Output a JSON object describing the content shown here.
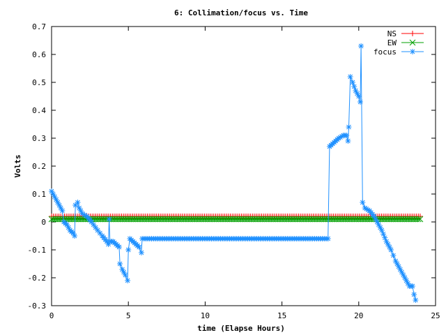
{
  "chart_data": {
    "type": "line",
    "title": "6: Collimation/focus vs. Time",
    "xlabel": "time (Elapse Hours)",
    "ylabel": "Volts",
    "xlim": [
      0,
      25
    ],
    "ylim": [
      -0.3,
      0.7
    ],
    "xticks": [
      "0",
      "5",
      "10",
      "15",
      "20",
      "25"
    ],
    "yticks": [
      "-0.3",
      "-0.2",
      "-0.1",
      "0",
      "0.1",
      "0.2",
      "0.3",
      "0.4",
      "0.5",
      "0.6",
      "0.7"
    ],
    "legend_position": "top-right",
    "series": [
      {
        "name": "NS",
        "color": "#ff0000",
        "marker": "plus",
        "points": [
          [
            0,
            0.02
          ],
          [
            24,
            0.02
          ]
        ]
      },
      {
        "name": "EW",
        "color": "#00a000",
        "marker": "cross",
        "points": [
          [
            0,
            0.01
          ],
          [
            24,
            0.01
          ]
        ]
      },
      {
        "name": "focus",
        "color": "#1e90ff",
        "marker": "star",
        "points": [
          [
            0,
            0.11
          ],
          [
            0.2,
            0.09
          ],
          [
            0.4,
            0.07
          ],
          [
            0.6,
            0.05
          ],
          [
            0.7,
            0.04
          ],
          [
            0.8,
            0.0
          ],
          [
            1.0,
            -0.01
          ],
          [
            1.2,
            -0.03
          ],
          [
            1.4,
            -0.04
          ],
          [
            1.5,
            -0.05
          ],
          [
            1.55,
            0.06
          ],
          [
            1.7,
            0.07
          ],
          [
            1.8,
            0.05
          ],
          [
            2.0,
            0.03
          ],
          [
            2.3,
            0.02
          ],
          [
            2.6,
            0.0
          ],
          [
            3.0,
            -0.03
          ],
          [
            3.3,
            -0.05
          ],
          [
            3.6,
            -0.07
          ],
          [
            3.7,
            -0.08
          ],
          [
            3.75,
            0.01
          ],
          [
            3.8,
            -0.07
          ],
          [
            4.0,
            -0.07
          ],
          [
            4.2,
            -0.08
          ],
          [
            4.4,
            -0.09
          ],
          [
            4.45,
            -0.15
          ],
          [
            4.6,
            -0.17
          ],
          [
            4.8,
            -0.19
          ],
          [
            4.95,
            -0.21
          ],
          [
            5.0,
            -0.1
          ],
          [
            5.1,
            -0.06
          ],
          [
            5.3,
            -0.07
          ],
          [
            5.5,
            -0.08
          ],
          [
            5.7,
            -0.09
          ],
          [
            5.85,
            -0.11
          ],
          [
            5.9,
            -0.06
          ],
          [
            7,
            -0.06
          ],
          [
            9,
            -0.06
          ],
          [
            11,
            -0.06
          ],
          [
            13,
            -0.06
          ],
          [
            15,
            -0.06
          ],
          [
            17,
            -0.06
          ],
          [
            18.0,
            -0.06
          ],
          [
            18.1,
            0.27
          ],
          [
            18.3,
            0.28
          ],
          [
            18.5,
            0.29
          ],
          [
            18.7,
            0.3
          ],
          [
            19.0,
            0.31
          ],
          [
            19.2,
            0.31
          ],
          [
            19.3,
            0.29
          ],
          [
            19.35,
            0.34
          ],
          [
            19.45,
            0.52
          ],
          [
            19.6,
            0.5
          ],
          [
            19.8,
            0.47
          ],
          [
            20.0,
            0.45
          ],
          [
            20.1,
            0.43
          ],
          [
            20.15,
            0.63
          ],
          [
            20.25,
            0.07
          ],
          [
            20.4,
            0.05
          ],
          [
            20.7,
            0.04
          ],
          [
            21.0,
            0.02
          ],
          [
            21.2,
            0.0
          ],
          [
            21.5,
            -0.03
          ],
          [
            21.8,
            -0.07
          ],
          [
            22.1,
            -0.1
          ],
          [
            22.4,
            -0.14
          ],
          [
            22.7,
            -0.17
          ],
          [
            23.0,
            -0.2
          ],
          [
            23.3,
            -0.23
          ],
          [
            23.5,
            -0.23
          ],
          [
            23.6,
            -0.26
          ],
          [
            23.7,
            -0.28
          ]
        ]
      }
    ]
  }
}
